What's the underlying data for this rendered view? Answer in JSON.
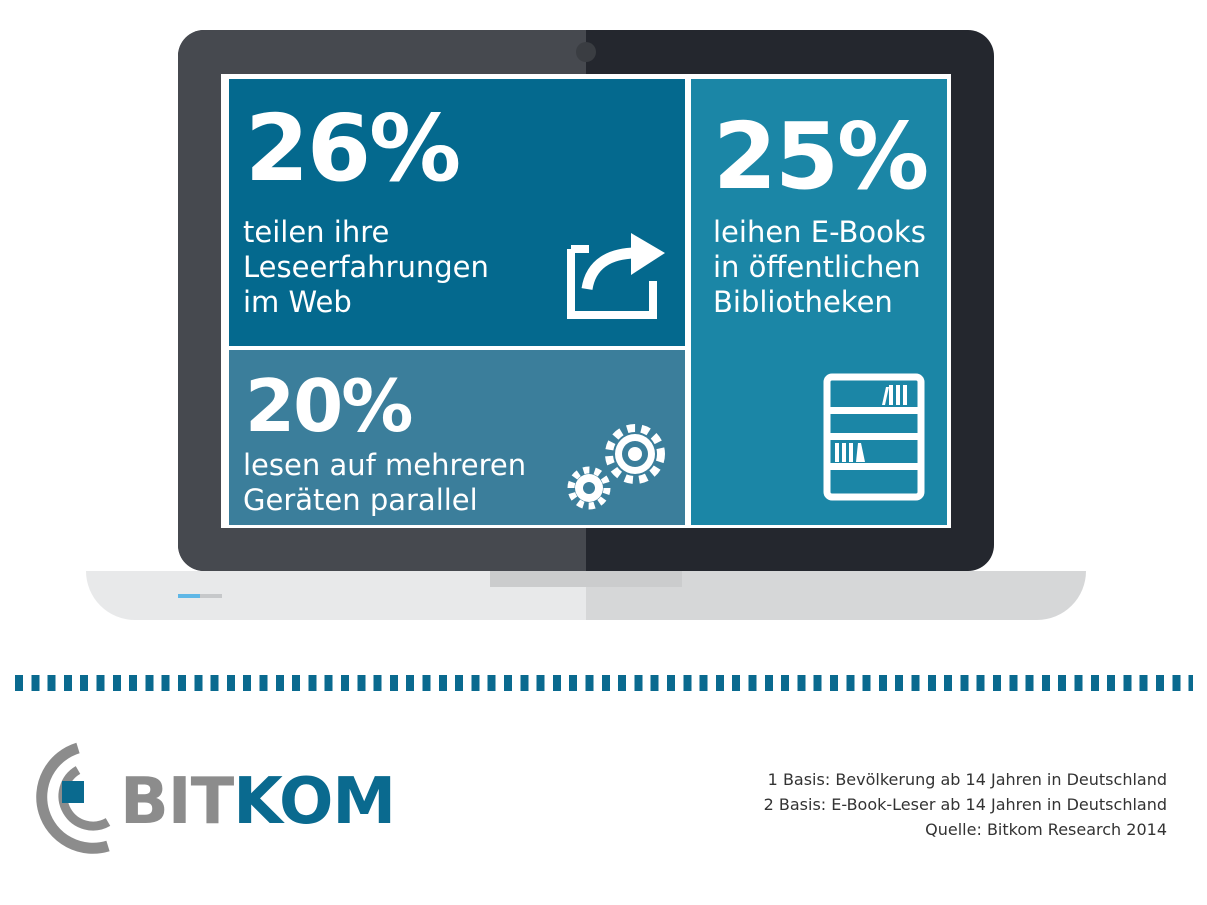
{
  "tiles": {
    "share": {
      "percent": "26%",
      "lines": [
        "teilen ihre",
        "Leseerfahrungen",
        "im Web"
      ]
    },
    "library": {
      "percent": "25%",
      "lines": [
        "leihen E-Books",
        "in öffentlichen",
        "Bibliotheken"
      ]
    },
    "devices": {
      "percent": "20%",
      "lines": [
        "lesen auf mehreren",
        "Geräten parallel"
      ]
    }
  },
  "logo": {
    "part1": "BIT",
    "part2": "KOM"
  },
  "footnotes": [
    "1 Basis: Bevölkerung ab 14 Jahren in Deutschland",
    "2 Basis: E-Book-Leser ab 14 Jahren in Deutschland",
    "Quelle: Bitkom Research 2014"
  ],
  "colors": {
    "tile_share": "#04698e",
    "tile_library": "#1b86a6",
    "tile_devices": "#3b7e9b",
    "brand_blue": "#0a6a8f",
    "brand_gray": "#8c8c8c"
  },
  "icons": [
    "share-icon",
    "bookshelf-icon",
    "gears-icon"
  ]
}
